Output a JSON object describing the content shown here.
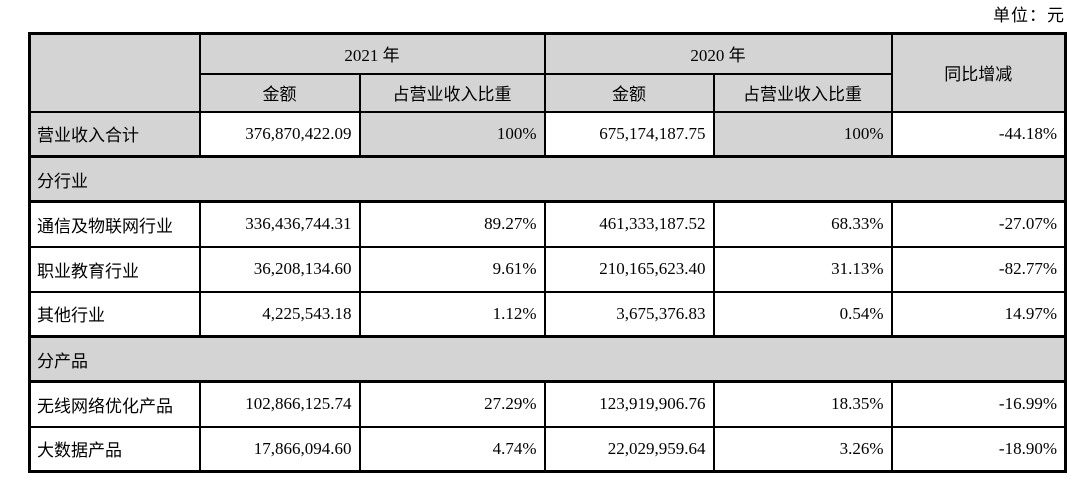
{
  "page": {
    "unit_label": "单位：元"
  },
  "colors": {
    "shade": "#d4d4d4",
    "border": "#000000"
  },
  "table": {
    "header": {
      "corner": "",
      "year_2021": "2021 年",
      "year_2020": "2020 年",
      "yoy": "同比增减",
      "amount_2021": "金额",
      "ratio_2021": "占营业收入比重",
      "amount_2020": "金额",
      "ratio_2020": "占营业收入比重"
    },
    "rows": [
      {
        "type": "data",
        "label": "营业收入合计",
        "amount_2021": "376,870,422.09",
        "ratio_2021": "100%",
        "amount_2020": "675,174,187.75",
        "ratio_2020": "100%",
        "yoy": "-44.18%",
        "shaded_cells": [
          "label",
          "ratio_2021",
          "ratio_2020"
        ]
      },
      {
        "type": "section",
        "label": "分行业"
      },
      {
        "type": "data",
        "label": "通信及物联网行业",
        "amount_2021": "336,436,744.31",
        "ratio_2021": "89.27%",
        "amount_2020": "461,333,187.52",
        "ratio_2020": "68.33%",
        "yoy": "-27.07%"
      },
      {
        "type": "data",
        "label": "职业教育行业",
        "amount_2021": "36,208,134.60",
        "ratio_2021": "9.61%",
        "amount_2020": "210,165,623.40",
        "ratio_2020": "31.13%",
        "yoy": "-82.77%"
      },
      {
        "type": "data",
        "label": "其他行业",
        "amount_2021": "4,225,543.18",
        "ratio_2021": "1.12%",
        "amount_2020": "3,675,376.83",
        "ratio_2020": "0.54%",
        "yoy": "14.97%"
      },
      {
        "type": "section",
        "label": "分产品"
      },
      {
        "type": "data",
        "label": "无线网络优化产品",
        "amount_2021": "102,866,125.74",
        "ratio_2021": "27.29%",
        "amount_2020": "123,919,906.76",
        "ratio_2020": "18.35%",
        "yoy": "-16.99%"
      },
      {
        "type": "data",
        "label": "大数据产品",
        "amount_2021": "17,866,094.60",
        "ratio_2021": "4.74%",
        "amount_2020": "22,029,959.64",
        "ratio_2020": "3.26%",
        "yoy": "-18.90%"
      }
    ]
  }
}
